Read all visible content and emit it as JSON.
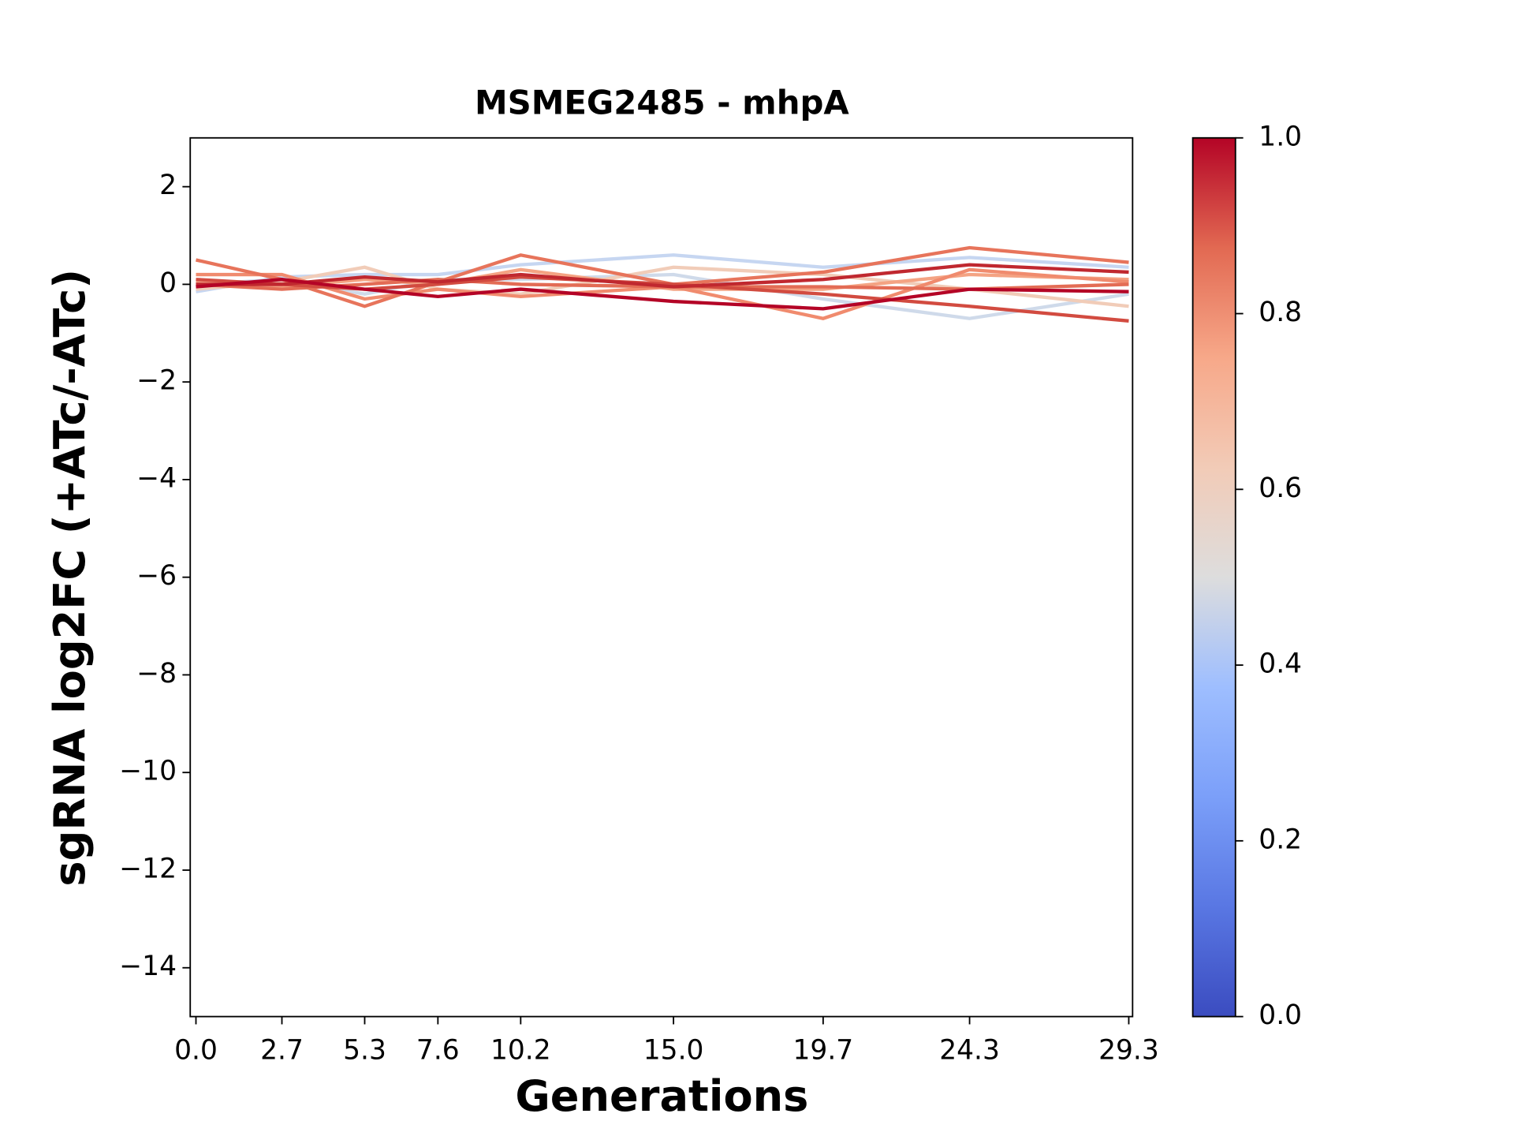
{
  "chart_data": {
    "type": "line",
    "title": "MSMEG2485 - mhpA",
    "xlabel": "Generations",
    "ylabel": "sgRNA log2FC (+ATc/-ATc)",
    "x": [
      0.0,
      2.7,
      5.3,
      7.6,
      10.2,
      15.0,
      19.7,
      24.3,
      29.3
    ],
    "xlim": [
      -0.18,
      29.42
    ],
    "xticks": [
      {
        "value": 0,
        "label": "0.0"
      },
      2.7,
      5.3,
      7.6,
      10.2,
      {
        "value": 15,
        "label": "15.0"
      },
      19.7,
      24.3,
      29.3
    ],
    "ylim": [
      -15,
      3
    ],
    "yticks": [
      2,
      0,
      {
        "value": -2,
        "label": "−2"
      },
      {
        "value": -4,
        "label": "−4"
      },
      {
        "value": -6,
        "label": "−6"
      },
      {
        "value": -8,
        "label": "−8"
      },
      {
        "value": -10,
        "label": "−10"
      },
      {
        "value": -12,
        "label": "−12"
      },
      {
        "value": -14,
        "label": "−14"
      }
    ],
    "series": [
      {
        "color": "#cfdaea",
        "values": [
          0,
          0.1,
          -0.2,
          0.1,
          0.1,
          0.2,
          -0.3,
          -0.7,
          -0.2
        ]
      },
      {
        "color": "#c6d6f1",
        "values": [
          -0.15,
          0.15,
          0.2,
          0.2,
          0.4,
          0.6,
          0.35,
          0.55,
          0.35
        ]
      },
      {
        "color": "#f1ccb8",
        "values": [
          -0.1,
          0.05,
          0.35,
          -0.1,
          -0.2,
          0.35,
          0.2,
          -0.1,
          -0.45
        ]
      },
      {
        "color": "#f4a383",
        "values": [
          0.05,
          -0.05,
          0.1,
          0,
          0.3,
          -0.1,
          -0.1,
          0.2,
          0.1
        ]
      },
      {
        "color": "#f08b6e",
        "values": [
          0.2,
          0.2,
          -0.3,
          -0.1,
          -0.25,
          -0.05,
          -0.7,
          0.3,
          0.05
        ]
      },
      {
        "color": "#e7745b",
        "values": [
          0.5,
          0.1,
          -0.45,
          0.05,
          0.6,
          0,
          0.25,
          0.75,
          0.45
        ]
      },
      {
        "color": "#e36c55",
        "values": [
          0,
          -0.1,
          0,
          0.1,
          0,
          -0.05,
          -0.05,
          -0.1,
          0
        ]
      },
      {
        "color": "#d24b40",
        "values": [
          0.1,
          0,
          -0.1,
          0,
          0.15,
          0,
          -0.2,
          -0.45,
          -0.75
        ]
      },
      {
        "color": "#c0282f",
        "values": [
          0,
          0,
          0.15,
          0.05,
          0.2,
          -0.05,
          0.1,
          0.4,
          0.25
        ]
      },
      {
        "color": "#b40426",
        "values": [
          -0.05,
          0.1,
          -0.1,
          -0.25,
          -0.1,
          -0.35,
          -0.5,
          -0.1,
          -0.15
        ]
      }
    ],
    "colorbar": {
      "lim": [
        0,
        1
      ],
      "ticks": [
        {
          "value": 0,
          "label": "0.0"
        },
        0.2,
        0.4,
        0.6,
        0.8,
        {
          "value": 1,
          "label": "1.0"
        }
      ],
      "colors": [
        "#3b4cc0",
        "#5977e3",
        "#7b9ff9",
        "#9ebeff",
        "#dddddd",
        "#f2cbb7",
        "#f7a889",
        "#e26952",
        "#b40426"
      ]
    }
  }
}
